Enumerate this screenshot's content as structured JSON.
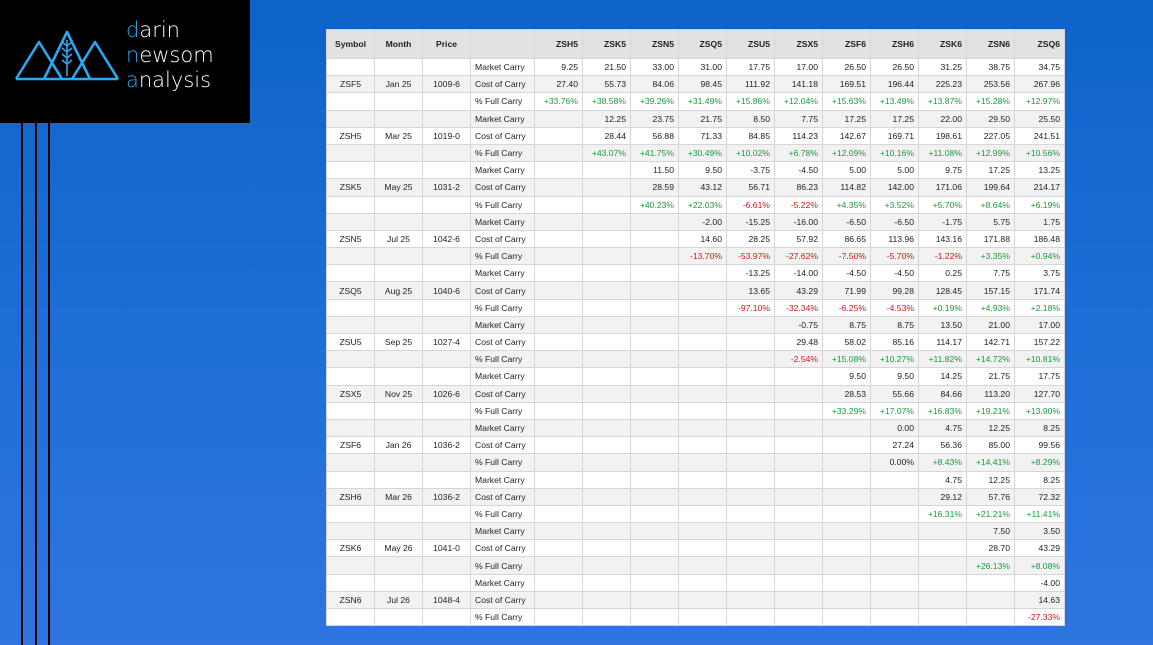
{
  "brand": {
    "line1": {
      "first": "d",
      "rest": "arin"
    },
    "line2": {
      "first": "n",
      "rest": "ewsom"
    },
    "line3": {
      "first": "a",
      "rest": "nalysis"
    },
    "accent_color": "#2aa8f2"
  },
  "table": {
    "headers": [
      "Symbol",
      "Month",
      "Price",
      "",
      "ZSH5",
      "ZSK5",
      "ZSN5",
      "ZSQ5",
      "ZSU5",
      "ZSX5",
      "ZSF6",
      "ZSH6",
      "ZSK6",
      "ZSN6",
      "ZSQ6"
    ],
    "rows": [
      [
        "",
        "",
        "",
        "Market Carry",
        "9.25",
        "21.50",
        "33.00",
        "31.00",
        "17.75",
        "17.00",
        "26.50",
        "26.50",
        "31.25",
        "38.75",
        "34.75"
      ],
      [
        "ZSF5",
        "Jan 25",
        "1009-6",
        "Cost of Carry",
        "27.40",
        "55.73",
        "84.06",
        "98.45",
        "111.92",
        "141.18",
        "169.51",
        "196.44",
        "225.23",
        "253.56",
        "267.96"
      ],
      [
        "",
        "",
        "",
        "% Full Carry",
        "+33.76%",
        "+38.58%",
        "+39.26%",
        "+31.49%",
        "+15.86%",
        "+12.04%",
        "+15.63%",
        "+13.49%",
        "+13.87%",
        "+15.28%",
        "+12.97%"
      ],
      [
        "",
        "",
        "",
        "Market Carry",
        "",
        "12.25",
        "23.75",
        "21.75",
        "8.50",
        "7.75",
        "17.25",
        "17.25",
        "22.00",
        "29.50",
        "25.50"
      ],
      [
        "ZSH5",
        "Mar 25",
        "1019-0",
        "Cost of Carry",
        "",
        "28.44",
        "56.88",
        "71.33",
        "84.85",
        "114.23",
        "142.67",
        "169.71",
        "198.61",
        "227.05",
        "241.51"
      ],
      [
        "",
        "",
        "",
        "% Full Carry",
        "",
        "+43.07%",
        "+41.75%",
        "+30.49%",
        "+10.02%",
        "+6.78%",
        "+12.09%",
        "+10.16%",
        "+11.08%",
        "+12.99%",
        "+10.56%"
      ],
      [
        "",
        "",
        "",
        "Market Carry",
        "",
        "",
        "11.50",
        "9.50",
        "-3.75",
        "-4.50",
        "5.00",
        "5.00",
        "9.75",
        "17.25",
        "13.25"
      ],
      [
        "ZSK5",
        "May 25",
        "1031-2",
        "Cost of Carry",
        "",
        "",
        "28.59",
        "43.12",
        "56.71",
        "86.23",
        "114.82",
        "142.00",
        "171.06",
        "199.64",
        "214.17"
      ],
      [
        "",
        "",
        "",
        "% Full Carry",
        "",
        "",
        "+40.23%",
        "+22.03%",
        "-6.61%",
        "-5.22%",
        "+4.35%",
        "+3.52%",
        "+5.70%",
        "+8.64%",
        "+6.19%"
      ],
      [
        "",
        "",
        "",
        "Market Carry",
        "",
        "",
        "",
        "-2.00",
        "-15.25",
        "-16.00",
        "-6.50",
        "-6.50",
        "-1.75",
        "5.75",
        "1.75"
      ],
      [
        "ZSN5",
        "Jul 25",
        "1042-6",
        "Cost of Carry",
        "",
        "",
        "",
        "14.60",
        "28.25",
        "57.92",
        "86.65",
        "113.96",
        "143.16",
        "171.88",
        "186.48"
      ],
      [
        "",
        "",
        "",
        "% Full Carry",
        "",
        "",
        "",
        "-13.70%",
        "-53.97%",
        "-27.62%",
        "-7.50%",
        "-5.70%",
        "-1.22%",
        "+3.35%",
        "+0.94%"
      ],
      [
        "",
        "",
        "",
        "Market Carry",
        "",
        "",
        "",
        "",
        "-13.25",
        "-14.00",
        "-4.50",
        "-4.50",
        "0.25",
        "7.75",
        "3.75"
      ],
      [
        "ZSQ5",
        "Aug 25",
        "1040-6",
        "Cost of Carry",
        "",
        "",
        "",
        "",
        "13.65",
        "43.29",
        "71.99",
        "99.28",
        "128.45",
        "157.15",
        "171.74"
      ],
      [
        "",
        "",
        "",
        "% Full Carry",
        "",
        "",
        "",
        "",
        "-97.10%",
        "-32.34%",
        "-6.25%",
        "-4.53%",
        "+0.19%",
        "+4.93%",
        "+2.18%"
      ],
      [
        "",
        "",
        "",
        "Market Carry",
        "",
        "",
        "",
        "",
        "",
        "-0.75",
        "8.75",
        "8.75",
        "13.50",
        "21.00",
        "17.00"
      ],
      [
        "ZSU5",
        "Sep 25",
        "1027-4",
        "Cost of Carry",
        "",
        "",
        "",
        "",
        "",
        "29.48",
        "58.02",
        "85.16",
        "114.17",
        "142.71",
        "157.22"
      ],
      [
        "",
        "",
        "",
        "% Full Carry",
        "",
        "",
        "",
        "",
        "",
        "-2.54%",
        "+15.08%",
        "+10.27%",
        "+11.82%",
        "+14.72%",
        "+10.81%"
      ],
      [
        "",
        "",
        "",
        "Market Carry",
        "",
        "",
        "",
        "",
        "",
        "",
        "9.50",
        "9.50",
        "14.25",
        "21.75",
        "17.75"
      ],
      [
        "ZSX5",
        "Nov 25",
        "1026-6",
        "Cost of Carry",
        "",
        "",
        "",
        "",
        "",
        "",
        "28.53",
        "55.66",
        "84.66",
        "113.20",
        "127.70"
      ],
      [
        "",
        "",
        "",
        "% Full Carry",
        "",
        "",
        "",
        "",
        "",
        "",
        "+33.29%",
        "+17.07%",
        "+16.83%",
        "+19.21%",
        "+13.90%"
      ],
      [
        "",
        "",
        "",
        "Market Carry",
        "",
        "",
        "",
        "",
        "",
        "",
        "",
        "0.00",
        "4.75",
        "12.25",
        "8.25"
      ],
      [
        "ZSF6",
        "Jan 26",
        "1036-2",
        "Cost of Carry",
        "",
        "",
        "",
        "",
        "",
        "",
        "",
        "27.24",
        "56.36",
        "85.00",
        "99.56"
      ],
      [
        "",
        "",
        "",
        "% Full Carry",
        "",
        "",
        "",
        "",
        "",
        "",
        "",
        "0.00%",
        "+8.43%",
        "+14.41%",
        "+8.29%"
      ],
      [
        "",
        "",
        "",
        "Market Carry",
        "",
        "",
        "",
        "",
        "",
        "",
        "",
        "",
        "4.75",
        "12.25",
        "8.25"
      ],
      [
        "ZSH6",
        "Mar 26",
        "1036-2",
        "Cost of Carry",
        "",
        "",
        "",
        "",
        "",
        "",
        "",
        "",
        "29.12",
        "57.76",
        "72.32"
      ],
      [
        "",
        "",
        "",
        "% Full Carry",
        "",
        "",
        "",
        "",
        "",
        "",
        "",
        "",
        "+16.31%",
        "+21.21%",
        "+11.41%"
      ],
      [
        "",
        "",
        "",
        "Market Carry",
        "",
        "",
        "",
        "",
        "",
        "",
        "",
        "",
        "",
        "7.50",
        "3.50"
      ],
      [
        "ZSK6",
        "May 26",
        "1041-0",
        "Cost of Carry",
        "",
        "",
        "",
        "",
        "",
        "",
        "",
        "",
        "",
        "28.70",
        "43.29"
      ],
      [
        "",
        "",
        "",
        "% Full Carry",
        "",
        "",
        "",
        "",
        "",
        "",
        "",
        "",
        "",
        "+26.13%",
        "+8.08%"
      ],
      [
        "",
        "",
        "",
        "Market Carry",
        "",
        "",
        "",
        "",
        "",
        "",
        "",
        "",
        "",
        "",
        "-4.00"
      ],
      [
        "ZSN6",
        "Jul 26",
        "1048-4",
        "Cost of Carry",
        "",
        "",
        "",
        "",
        "",
        "",
        "",
        "",
        "",
        "",
        "14.63"
      ],
      [
        "",
        "",
        "",
        "% Full Carry",
        "",
        "",
        "",
        "",
        "",
        "",
        "",
        "",
        "",
        "",
        "-27.33%"
      ]
    ],
    "positive_color": "#1a9a3a",
    "negative_color": "#d01818"
  }
}
